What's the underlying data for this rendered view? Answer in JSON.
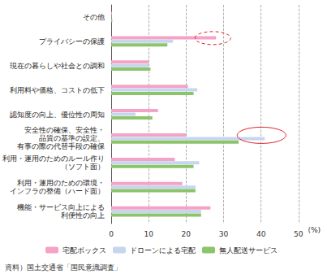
{
  "chart_data": {
    "type": "bar",
    "orientation": "horizontal",
    "categories": [
      "その他",
      "プライバシーの保護",
      "現在の暮らしや社会との調和",
      "利用料や価格、コストの低下",
      "認知度の向上、優位性の周知",
      "安全性の確保、安全性・\n品質の基準の設定、\n有事の際の代替手段の確保",
      "利用・運用のためのルール作り\n（ソフト面）",
      "利用・運用のための環境・\nインフラの整備（ハード面）",
      "機能・サービス向上による\n利便性の向上"
    ],
    "series": [
      {
        "name": "宅配ボックス",
        "color": "#f4a3c6",
        "values": [
          0.2,
          28,
          10,
          20.5,
          12.5,
          20,
          17,
          19,
          26.5
        ]
      },
      {
        "name": "ドローンによる宅配",
        "color": "#c6d6ee",
        "values": [
          0.1,
          16.5,
          10,
          23,
          6.5,
          41,
          23.5,
          22.5,
          24
        ]
      },
      {
        "name": "無人配送サービス",
        "color": "#8cc46a",
        "values": [
          0.3,
          15,
          10.5,
          22,
          11,
          34,
          22,
          22.5,
          24
        ]
      }
    ],
    "xlabel": "(%)",
    "xlim": [
      0,
      50
    ],
    "xticks": [
      0,
      10,
      20,
      30,
      40,
      50
    ],
    "grid": true,
    "legend": "bottom",
    "source": "資料）国土交通省「国民意識調査」"
  }
}
